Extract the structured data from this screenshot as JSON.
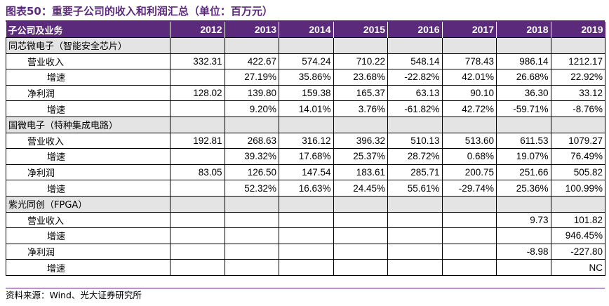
{
  "title": "图表50：重要子公司的收入和利润汇总（单位：百万元）",
  "header": {
    "first_col": "子公司及业务",
    "years": [
      "2012",
      "2013",
      "2014",
      "2015",
      "2016",
      "2017",
      "2018",
      "2019"
    ]
  },
  "colors": {
    "accent": "#5b2a7a",
    "band": "#e4e4e4"
  },
  "rows": [
    {
      "kind": "company",
      "label": "同芯微电子（智能安全芯片）",
      "values": [
        "",
        "",
        "",
        "",
        "",
        "",
        "",
        ""
      ]
    },
    {
      "kind": "metric",
      "label": "营业收入",
      "values": [
        "332.31",
        "422.67",
        "574.24",
        "710.22",
        "548.14",
        "778.43",
        "986.14",
        "1212.17"
      ]
    },
    {
      "kind": "growth",
      "label": "增速",
      "values": [
        "",
        "27.19%",
        "35.86%",
        "23.68%",
        "-22.82%",
        "42.01%",
        "26.68%",
        "22.92%"
      ]
    },
    {
      "kind": "metric",
      "label": "净利润",
      "values": [
        "128.02",
        "139.80",
        "159.38",
        "165.37",
        "63.13",
        "90.10",
        "36.30",
        "33.12"
      ]
    },
    {
      "kind": "growth",
      "label": "增速",
      "values": [
        "",
        "9.20%",
        "14.01%",
        "3.76%",
        "-61.82%",
        "42.72%",
        "-59.71%",
        "-8.76%"
      ]
    },
    {
      "kind": "company",
      "label": "国微电子（特种集成电路）",
      "values": [
        "",
        "",
        "",
        "",
        "",
        "",
        "",
        ""
      ]
    },
    {
      "kind": "metric",
      "label": "营业收入",
      "values": [
        "192.81",
        "268.63",
        "316.12",
        "396.32",
        "510.13",
        "513.60",
        "611.53",
        "1079.27"
      ]
    },
    {
      "kind": "growth",
      "label": "增速",
      "values": [
        "",
        "39.32%",
        "17.68%",
        "25.37%",
        "28.72%",
        "0.68%",
        "19.07%",
        "76.49%"
      ]
    },
    {
      "kind": "metric",
      "label": "净利润",
      "values": [
        "83.05",
        "126.50",
        "147.54",
        "183.61",
        "285.71",
        "200.75",
        "251.66",
        "505.82"
      ]
    },
    {
      "kind": "growth",
      "label": "增速",
      "values": [
        "",
        "52.32%",
        "16.63%",
        "24.45%",
        "55.61%",
        "-29.74%",
        "25.36%",
        "100.99%"
      ]
    },
    {
      "kind": "company",
      "label": "紫光同创（FPGA）",
      "values": [
        "",
        "",
        "",
        "",
        "",
        "",
        "",
        ""
      ]
    },
    {
      "kind": "metric",
      "label": "营业收入",
      "values": [
        "",
        "",
        "",
        "",
        "",
        "",
        "9.73",
        "101.82"
      ]
    },
    {
      "kind": "growth",
      "label": "增速",
      "values": [
        "",
        "",
        "",
        "",
        "",
        "",
        "",
        "946.45%"
      ]
    },
    {
      "kind": "metric",
      "label": "净利润",
      "values": [
        "",
        "",
        "",
        "",
        "",
        "",
        "-8.98",
        "-227.80"
      ]
    },
    {
      "kind": "growth",
      "label": "增速",
      "values": [
        "",
        "",
        "",
        "",
        "",
        "",
        "",
        "NC"
      ]
    }
  ],
  "source": "资料来源：Wind、光大证券研究所"
}
